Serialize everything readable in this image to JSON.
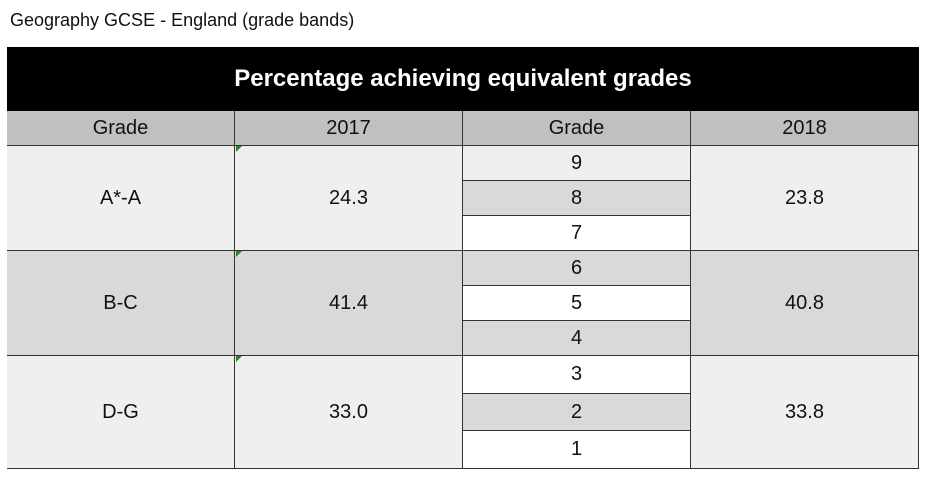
{
  "caption": "Geography GCSE - England (grade bands)",
  "table": {
    "title": "Percentage achieving equivalent grades",
    "columns": [
      "Grade",
      "2017",
      "Grade",
      "2018"
    ],
    "rows": [
      {
        "band": "A*-A",
        "left_value": "24.3",
        "grades": [
          "9",
          "8",
          "7"
        ],
        "right_value": "23.8"
      },
      {
        "band": "B-C",
        "left_value": "41.4",
        "grades": [
          "6",
          "5",
          "4"
        ],
        "right_value": "40.8"
      },
      {
        "band": "D-G",
        "left_value": "33.0",
        "grades": [
          "3",
          "2",
          "1"
        ],
        "right_value": "33.8"
      }
    ]
  }
}
